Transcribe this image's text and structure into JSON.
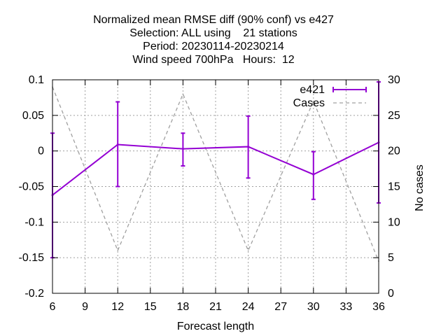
{
  "chart_data": {
    "type": "line",
    "title_lines": [
      "Normalized mean RMSE diff (90% conf) vs e427",
      "Selection: ALL using    21 stations",
      "Period: 20230114-20230214",
      "Wind speed 700hPa   Hours:  12"
    ],
    "xlabel": "Forecast length",
    "ylabel": "",
    "y2label": "No cases",
    "xlim": [
      6,
      36
    ],
    "ylim": [
      -0.2,
      0.1
    ],
    "y2lim": [
      0,
      30
    ],
    "xticks": [
      "6",
      "9",
      "12",
      "15",
      "18",
      "21",
      "24",
      "27",
      "30",
      "33",
      "36"
    ],
    "yticks": [
      "-0.2",
      "-0.15",
      "-0.1",
      "-0.05",
      "0",
      "0.05",
      "0.1"
    ],
    "y2ticks": [
      "0",
      "5",
      "10",
      "15",
      "20",
      "25",
      "30"
    ],
    "grid": true,
    "legend_position": "top-right",
    "series": [
      {
        "name": "e421",
        "color": "#9400d3",
        "style": "solid-with-errorbars",
        "axis": "y",
        "x": [
          6,
          12,
          18,
          24,
          30,
          36
        ],
        "y": [
          -0.062,
          0.009,
          0.003,
          0.006,
          -0.033,
          0.012
        ],
        "err_low": [
          -0.15,
          -0.05,
          -0.021,
          -0.038,
          -0.068,
          -0.073
        ],
        "err_high": [
          0.025,
          0.069,
          0.025,
          0.049,
          -0.001,
          0.097
        ]
      },
      {
        "name": "Cases",
        "color": "#a0a0a0",
        "style": "dashed",
        "axis": "y2",
        "x": [
          6,
          12,
          18,
          24,
          30,
          36
        ],
        "y": [
          29,
          6,
          28,
          6,
          27,
          4.5
        ]
      }
    ]
  }
}
